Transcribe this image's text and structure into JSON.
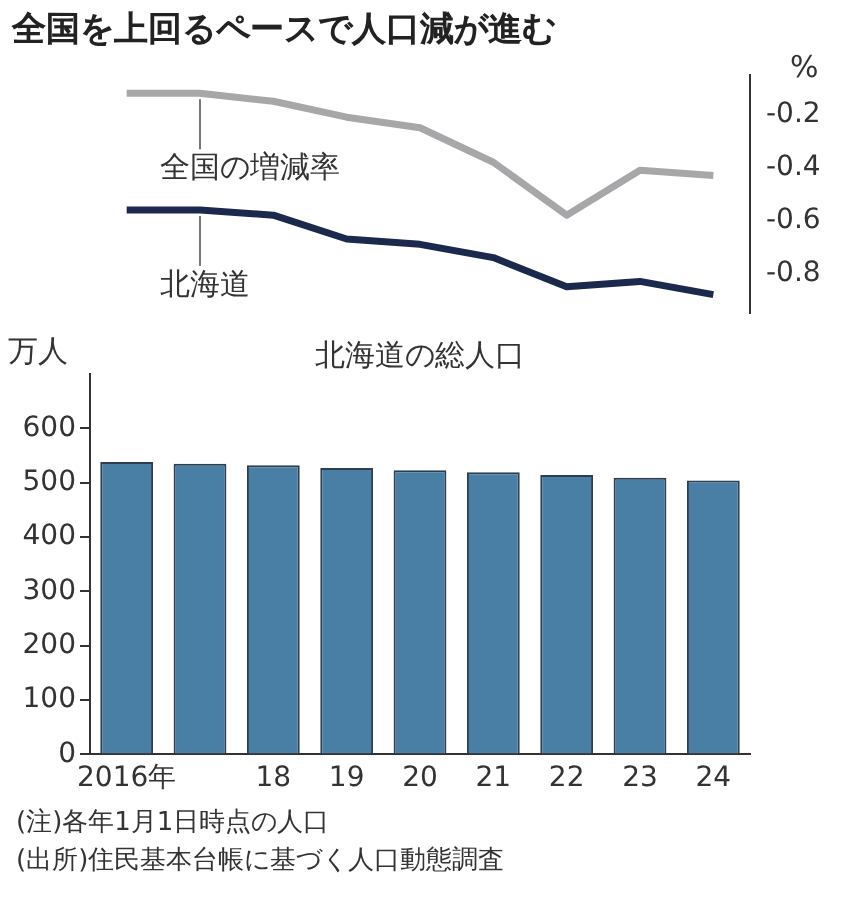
{
  "chart_data": [
    {
      "type": "line",
      "title": "全国を上回るペースで人口減が進む",
      "series": [
        {
          "name": "全国の増減率",
          "color": "#a7a7aa",
          "values": [
            -0.12,
            -0.12,
            -0.15,
            -0.21,
            -0.25,
            -0.38,
            -0.58,
            -0.41,
            -0.43
          ]
        },
        {
          "name": "北海道",
          "color": "#1b2a4c",
          "values": [
            -0.56,
            -0.56,
            -0.58,
            -0.67,
            -0.69,
            -0.74,
            -0.85,
            -0.83,
            -0.88
          ]
        }
      ],
      "ylabel": "%",
      "ylim": [
        -0.95,
        -0.05
      ],
      "yticks": [
        {
          "value": -0.2,
          "label": "-0.2"
        },
        {
          "value": -0.4,
          "label": "-0.4"
        },
        {
          "value": -0.6,
          "label": "-0.6"
        },
        {
          "value": -0.8,
          "label": "-0.8"
        }
      ],
      "tick_labels": "y",
      "grid": false,
      "legend": false,
      "marker": "none",
      "line_style": "solid"
    },
    {
      "type": "bar",
      "title": "北海道の総人口",
      "categories": [
        "2016年",
        null,
        "18",
        "19",
        "20",
        "21",
        "22",
        "23",
        "24"
      ],
      "values": [
        538,
        535,
        532,
        527,
        523,
        519,
        514,
        509,
        504
      ],
      "color": "#4a7fa5",
      "ylabel": "万人",
      "ylim": [
        0,
        700
      ],
      "yticks": [
        0,
        100,
        200,
        300,
        400,
        500,
        600
      ],
      "grid": false,
      "legend": false,
      "annotations": [
        "(注)各年1月1日時点の人口",
        "(出所)住民基本台帳に基づく人口動態調査"
      ]
    }
  ]
}
